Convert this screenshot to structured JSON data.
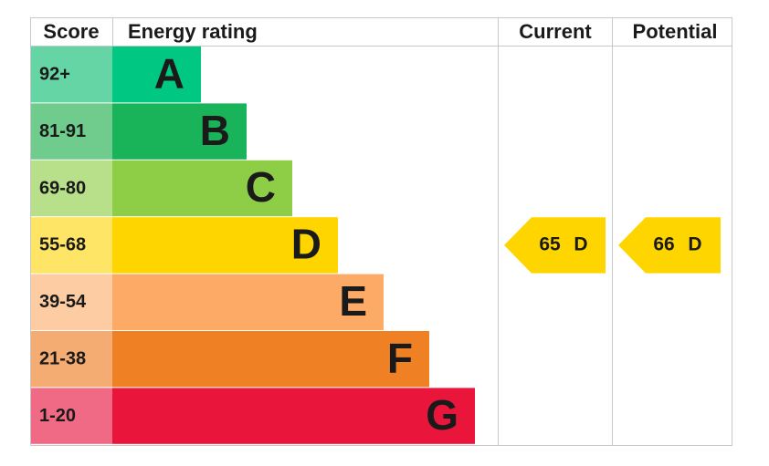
{
  "header": {
    "score": "Score",
    "energy_rating": "Energy rating",
    "current": "Current",
    "potential": "Potential"
  },
  "bands": [
    {
      "range": "92+",
      "letter": "A",
      "color": "#00c781",
      "light": "#66d5a6"
    },
    {
      "range": "81-91",
      "letter": "B",
      "color": "#19b459",
      "light": "#6fcc8d"
    },
    {
      "range": "69-80",
      "letter": "C",
      "color": "#8dce46",
      "light": "#b8e08a"
    },
    {
      "range": "55-68",
      "letter": "D",
      "color": "#ffd500",
      "light": "#ffe566"
    },
    {
      "range": "39-54",
      "letter": "E",
      "color": "#fcaa65",
      "light": "#fdcca2"
    },
    {
      "range": "21-38",
      "letter": "F",
      "color": "#ef8023",
      "light": "#f5ac72"
    },
    {
      "range": "1-20",
      "letter": "G",
      "color": "#e9153b",
      "light": "#f06a85"
    }
  ],
  "current": {
    "score": 65,
    "band": "D"
  },
  "potential": {
    "score": 66,
    "band": "D"
  }
}
